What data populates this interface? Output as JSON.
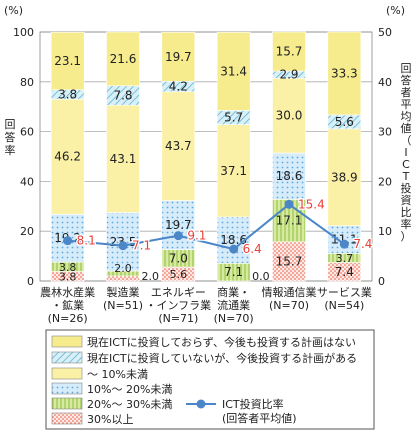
{
  "chart_data": {
    "type": "bar",
    "stacked": true,
    "left_axis": {
      "unit_label": "(%)",
      "label": "回答率",
      "ticks": [
        0,
        20,
        40,
        60,
        80,
        100
      ],
      "ylim": [
        0,
        100
      ]
    },
    "right_axis": {
      "unit_label": "(%)",
      "label": "回答者平均値（ICT投資比率）",
      "ticks": [
        0,
        10,
        20,
        30,
        40,
        50
      ],
      "ylim": [
        0,
        50
      ]
    },
    "categories": [
      [
        "農林水産業",
        "・鉱業",
        "(N=26)"
      ],
      [
        "製造業",
        "(N=51)"
      ],
      [
        "エネルギー",
        "・インフラ業",
        "(N=71)"
      ],
      [
        "商業・",
        "流通業",
        "(N=70)"
      ],
      [
        "情報通信業",
        "(N=70)"
      ],
      [
        "サービス業",
        "(N=54)"
      ]
    ],
    "series": [
      {
        "name": "30%以上",
        "key": "s30",
        "color": "#f5d5d0",
        "values": [
          3.8,
          2.0,
          5.6,
          0.0,
          15.7,
          7.4
        ],
        "labels": [
          "3.8",
          "2.0",
          "5.6",
          "0.0",
          "15.7",
          "7.4"
        ]
      },
      {
        "name": "20%～ 30%未満",
        "key": "s20",
        "color": "#c6e08f",
        "values": [
          3.8,
          2.0,
          7.0,
          7.1,
          17.1,
          3.7
        ],
        "labels": [
          "3.8",
          "2.0",
          "7.0",
          "7.1",
          "17.1",
          "3.7"
        ]
      },
      {
        "name": "10%～ 20%未満",
        "key": "s10",
        "color": "#cde6f7",
        "values": [
          19.2,
          23.5,
          19.7,
          18.6,
          18.6,
          11.1
        ],
        "labels": [
          "19.2",
          "23.5",
          "19.7",
          "18.6",
          "18.6",
          "11.1"
        ]
      },
      {
        "name": "～ 10%未満",
        "key": "s0",
        "color": "#fbf1a6",
        "values": [
          46.2,
          43.1,
          43.7,
          37.1,
          30.0,
          38.9
        ],
        "labels": [
          "46.2",
          "43.1",
          "43.7",
          "37.1",
          "30.0",
          "38.9"
        ]
      },
      {
        "name": "現在ICTに投資していないが、今後投資する計画がある",
        "key": "plan",
        "color": "#cfeaf2",
        "values": [
          3.8,
          7.8,
          4.2,
          5.7,
          2.9,
          5.6
        ],
        "labels": [
          "3.8",
          "7.8",
          "4.2",
          "5.7",
          "2.9",
          "5.6"
        ]
      },
      {
        "name": "現在ICTに投資しておらず、今後も投資する計画はない",
        "key": "none",
        "color": "#f6ec8e",
        "values": [
          23.1,
          21.6,
          19.7,
          31.4,
          15.7,
          33.3
        ],
        "labels": [
          "23.1",
          "21.6",
          "19.7",
          "31.4",
          "15.7",
          "33.3"
        ]
      }
    ],
    "line_series": {
      "name": "ICT投資比率 (回答者平均値)",
      "color": "#4a86c8",
      "label_color": "#e8423a",
      "values": [
        8.1,
        7.1,
        9.1,
        6.4,
        15.4,
        7.4
      ],
      "labels": [
        "8.1",
        "7.1",
        "9.1",
        "6.4",
        "15.4",
        "7.4"
      ]
    },
    "legend": [
      {
        "key": "none",
        "label": "現在ICTに投資しておらず、今後も投資する計画はない"
      },
      {
        "key": "plan",
        "label": "現在ICTに投資していないが、今後投資する計画がある"
      },
      {
        "key": "s0",
        "label": "～ 10%未満"
      },
      {
        "key": "s10",
        "label": "10%～ 20%未満"
      },
      {
        "key": "s20",
        "label": "20%～ 30%未満"
      },
      {
        "key": "line",
        "label": "ICT投資比率",
        "sub": "(回答者平均値)"
      },
      {
        "key": "s30",
        "label": "30%以上"
      }
    ]
  }
}
